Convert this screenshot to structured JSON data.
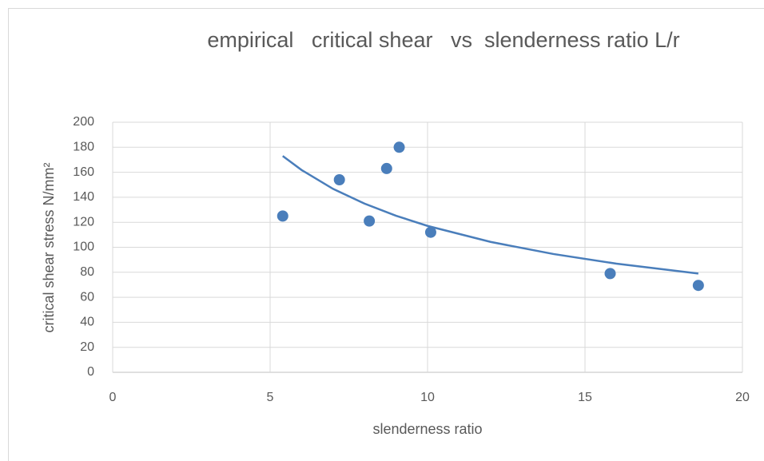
{
  "chart_data": {
    "type": "scatter",
    "title": "empirical   critical shear   vs  slenderness ratio L/r",
    "x_label": "slenderness ratio",
    "y_label": "critical shear stress N/mm²",
    "series": [
      {
        "name": "critical shear",
        "color": "#4a7ebb",
        "x": [
          5.4,
          7.2,
          8.15,
          8.7,
          9.1,
          10.1,
          15.8,
          18.6
        ],
        "values": [
          125,
          154,
          121,
          163,
          180,
          112,
          79,
          69.5
        ]
      }
    ],
    "trendline": {
      "type": "power",
      "color": "#4a7ebb",
      "x": [
        5.4,
        6,
        7,
        8,
        9,
        10,
        12,
        14,
        16,
        18.6
      ],
      "values": [
        173,
        161.8,
        146.7,
        134.9,
        125.2,
        117.1,
        104.3,
        94.6,
        86.9,
        79
      ]
    },
    "xlim": [
      0,
      20
    ],
    "xticks": [
      0,
      5,
      10,
      15,
      20
    ],
    "ylim": [
      0,
      200
    ],
    "yticks": [
      0,
      20,
      40,
      60,
      80,
      100,
      120,
      140,
      160,
      180,
      200
    ],
    "grid": true
  }
}
